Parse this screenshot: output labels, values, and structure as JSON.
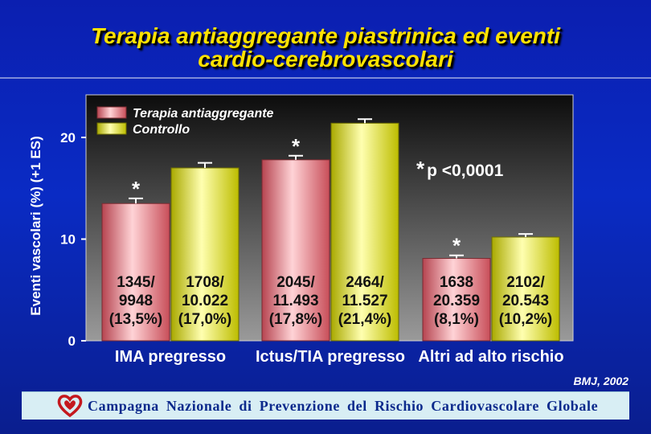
{
  "title_line1": "Terapia antiaggregante piastrinica ed eventi",
  "title_line2": "cardio-cerebrovascolari",
  "source": "BMJ, 2002",
  "footer": "Campagna Nazionale di Prevenzione del Rischio Cardiovascolare Globale",
  "colors": {
    "background": "#0a2bc4",
    "title": "#ffe200",
    "series_1": "#e8747e",
    "series_2": "#e6e600",
    "footer_bg": "#d8eef4",
    "footer_text": "#0c2a8c"
  },
  "chart_data": {
    "type": "bar",
    "ylabel": "Eventi vascolari (%) (+1 ES)",
    "ylim": [
      0,
      24
    ],
    "yticks": [
      0,
      10,
      20
    ],
    "categories": [
      "IMA pregresso",
      "Ictus/TIA pregresso",
      "Altri ad alto rischio"
    ],
    "series": [
      {
        "name": "Terapia antiaggregante",
        "values": [
          13.5,
          17.8,
          8.1
        ],
        "error": [
          0.5,
          0.4,
          0.3
        ],
        "labels": [
          [
            "1345/",
            "9948",
            "(13,5%)"
          ],
          [
            "2045/",
            "11.493",
            "(17,8%)"
          ],
          [
            "1638",
            "20.359",
            "(8,1%)"
          ]
        ],
        "markers": [
          "*",
          "*",
          "*"
        ]
      },
      {
        "name": "Controllo",
        "values": [
          17.0,
          21.4,
          10.2
        ],
        "error": [
          0.5,
          0.4,
          0.3
        ],
        "labels": [
          [
            "1708/",
            "10.022",
            "(17,0%)"
          ],
          [
            "2464/",
            "11.527",
            "(21,4%)"
          ],
          [
            "2102/",
            "20.543",
            "(10,2%)"
          ]
        ],
        "markers": [
          "",
          "",
          ""
        ]
      }
    ],
    "annotation": "p <0,0001",
    "annotation_marker": "*",
    "legend_position": "top-left",
    "grid": false
  }
}
